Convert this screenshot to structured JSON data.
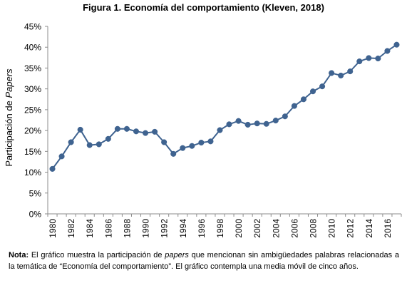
{
  "chart_data": {
    "type": "line",
    "title": "Figura 1. Economía del comportamiento (Kleven, 2018)",
    "ylabel_prefix": "Participación de ",
    "ylabel_italic": "Papers",
    "xlabel": "",
    "ylim": [
      0,
      45
    ],
    "y_tick_labels": [
      "0%",
      "5%",
      "10%",
      "15%",
      "20%",
      "25%",
      "30%",
      "35%",
      "40%",
      "45%"
    ],
    "x_tick_labels": [
      "1980",
      "1982",
      "1984",
      "1986",
      "1988",
      "1990",
      "1992",
      "1994",
      "1996",
      "1998",
      "2000",
      "2002",
      "2004",
      "2006",
      "2008",
      "2010",
      "2012",
      "2014",
      "2016"
    ],
    "grid": false,
    "legend": "none",
    "color": "#3f6390",
    "x": [
      1980,
      1981,
      1982,
      1983,
      1984,
      1985,
      1986,
      1987,
      1988,
      1989,
      1990,
      1991,
      1992,
      1993,
      1994,
      1995,
      1996,
      1997,
      1998,
      1999,
      2000,
      2001,
      2002,
      2003,
      2004,
      2005,
      2006,
      2007,
      2008,
      2009,
      2010,
      2011,
      2012,
      2013,
      2014,
      2015,
      2016,
      2017
    ],
    "values": [
      10.8,
      13.8,
      17.2,
      20.2,
      16.5,
      16.7,
      18.0,
      20.4,
      20.4,
      19.8,
      19.4,
      19.7,
      17.2,
      14.4,
      15.8,
      16.3,
      17.1,
      17.4,
      20.1,
      21.5,
      22.3,
      21.4,
      21.7,
      21.6,
      22.4,
      23.4,
      25.9,
      27.5,
      29.4,
      30.6,
      33.8,
      33.2,
      34.2,
      36.6,
      37.4,
      37.3,
      39.1,
      40.6
    ]
  },
  "note": {
    "label": "Nota:",
    "text_before": " El gráfico muestra la participación de ",
    "italic_word": "papers",
    "text_after": " que mencionan sin ambigüedades palabras relacionadas a la temática de “Economía del comportamiento”. El gráfico contempla una media móvil de cinco años."
  }
}
